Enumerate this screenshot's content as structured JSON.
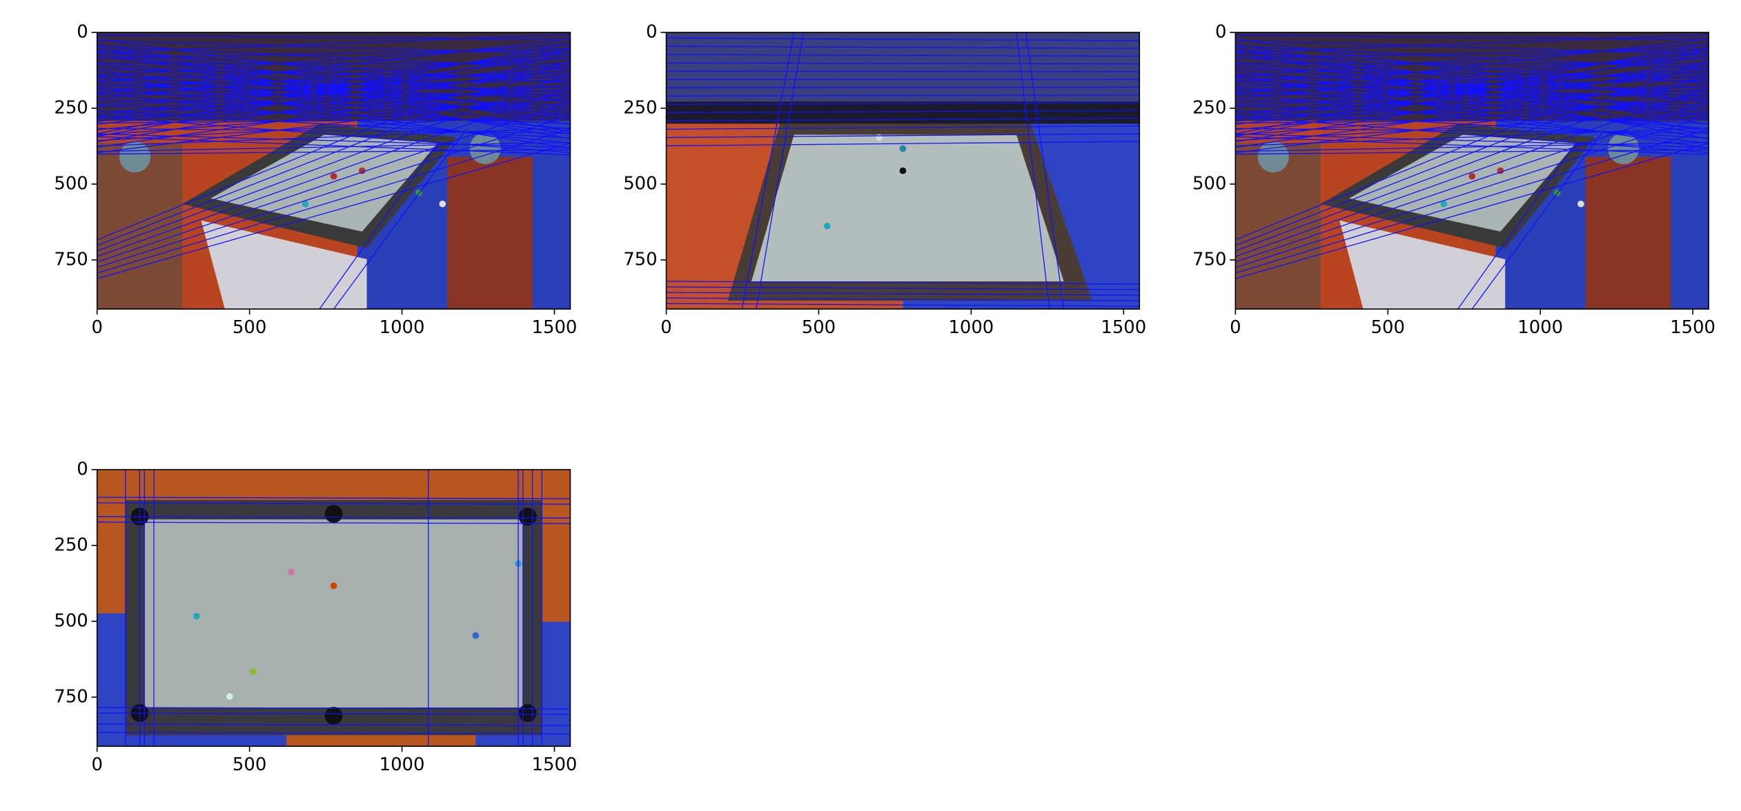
{
  "chart_data": [
    {
      "type": "image",
      "xlim": [
        0,
        1552
      ],
      "ylim": [
        912,
        0
      ],
      "xticks": [
        0,
        500,
        1000,
        1500
      ],
      "yticks": [
        0,
        250,
        500,
        750
      ]
    },
    {
      "type": "image",
      "xlim": [
        0,
        1552
      ],
      "ylim": [
        912,
        0
      ],
      "xticks": [
        0,
        500,
        1000,
        1500
      ],
      "yticks": [
        0,
        250,
        500,
        750
      ]
    },
    {
      "type": "image",
      "xlim": [
        0,
        1552
      ],
      "ylim": [
        912,
        0
      ],
      "xticks": [
        0,
        500,
        1000,
        1500
      ],
      "yticks": [
        0,
        250,
        500,
        750
      ]
    },
    {
      "type": "image",
      "xlim": [
        0,
        1552
      ],
      "ylim": [
        912,
        0
      ],
      "xticks": [
        0,
        500,
        1000,
        1500
      ],
      "yticks": [
        0,
        250,
        500,
        750
      ]
    }
  ]
}
